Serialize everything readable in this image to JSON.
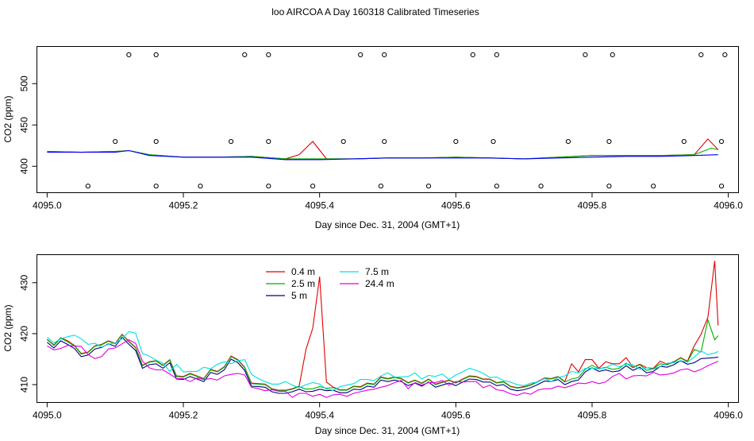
{
  "figure_title": "loo AIRCOA A  Day 160318  Calibrated Timeseries",
  "colors": {
    "0.4 m": "#e00000",
    "2.5 m": "#00b000",
    "5 m": "#000080",
    "7.5 m": "#00e0e0",
    "24.4 m": "#e000e0",
    "blue_line": "#0000ff",
    "markers": "#000000"
  },
  "chart_data": [
    {
      "type": "line",
      "title": "",
      "xlabel": "Day since Dec. 31, 2004 (GMT+1)",
      "ylabel": "CO2 (ppm)",
      "xlim": [
        4094.985,
        4096.015
      ],
      "ylim": [
        368,
        545
      ],
      "xticks": [
        4095.0,
        4095.2,
        4095.4,
        4095.6,
        4095.8,
        4096.0
      ],
      "xtick_labels": [
        "4095.0",
        "4095.2",
        "4095.4",
        "4095.6",
        "4095.8",
        "4096.0"
      ],
      "yticks": [
        400,
        450,
        500
      ],
      "ytick_labels": [
        "400",
        "450",
        "500"
      ],
      "grid": false,
      "series": [
        {
          "color": "#e00000",
          "x": [
            4095.0,
            4095.05,
            4095.1,
            4095.12,
            4095.15,
            4095.2,
            4095.25,
            4095.3,
            4095.35,
            4095.37,
            4095.39,
            4095.41,
            4095.45,
            4095.5,
            4095.55,
            4095.6,
            4095.65,
            4095.7,
            4095.75,
            4095.8,
            4095.85,
            4095.9,
            4095.95,
            4095.97,
            4095.985
          ],
          "values": [
            418,
            417,
            418,
            419,
            414,
            411,
            411,
            412,
            409,
            414,
            430,
            409,
            409,
            410,
            410,
            411,
            410,
            409,
            411,
            413,
            413,
            413,
            414,
            433,
            420
          ]
        },
        {
          "color": "#00b000",
          "x": [
            4095.0,
            4095.05,
            4095.1,
            4095.12,
            4095.15,
            4095.2,
            4095.25,
            4095.3,
            4095.35,
            4095.4,
            4095.45,
            4095.5,
            4095.55,
            4095.6,
            4095.65,
            4095.7,
            4095.75,
            4095.8,
            4095.85,
            4095.9,
            4095.95,
            4095.975,
            4095.985
          ],
          "values": [
            418,
            417,
            418,
            419,
            414,
            411,
            411,
            412,
            409,
            409,
            409,
            410,
            410,
            411,
            410,
            409,
            411,
            413,
            413,
            413,
            414,
            422,
            420
          ]
        },
        {
          "color": "#0000ff",
          "x": [
            4095.0,
            4095.05,
            4095.1,
            4095.12,
            4095.15,
            4095.2,
            4095.25,
            4095.3,
            4095.35,
            4095.4,
            4095.45,
            4095.5,
            4095.55,
            4095.6,
            4095.65,
            4095.7,
            4095.75,
            4095.8,
            4095.85,
            4095.9,
            4095.95,
            4095.985
          ],
          "values": [
            417,
            417,
            417,
            419,
            413,
            411,
            411,
            411,
            408,
            408,
            409,
            410,
            410,
            410,
            410,
            409,
            410,
            411,
            412,
            412,
            413,
            414
          ]
        }
      ],
      "markers": {
        "upper": {
          "x": [
            4095.12,
            4095.16,
            4095.29,
            4095.325,
            4095.46,
            4095.495,
            4095.625,
            4095.66,
            4095.79,
            4095.83,
            4095.96,
            4095.995
          ],
          "y": 535
        },
        "middle": {
          "x": [
            4095.1,
            4095.16,
            4095.27,
            4095.325,
            4095.435,
            4095.495,
            4095.6,
            4095.655,
            4095.765,
            4095.825,
            4095.935,
            4095.99
          ],
          "y": 430
        },
        "lower": {
          "x": [
            4095.06,
            4095.16,
            4095.225,
            4095.325,
            4095.39,
            4095.49,
            4095.56,
            4095.66,
            4095.725,
            4095.825,
            4095.89,
            4095.99
          ],
          "y": 376
        }
      }
    },
    {
      "type": "line",
      "title": "",
      "xlabel": "Day since Dec. 31, 2004 (GMT+1)",
      "ylabel": "CO2 (ppm)",
      "xlim": [
        4094.985,
        4096.015
      ],
      "ylim": [
        406.5,
        435.5
      ],
      "xticks": [
        4095.0,
        4095.2,
        4095.4,
        4095.6,
        4095.8,
        4096.0
      ],
      "xtick_labels": [
        "4095.0",
        "4095.2",
        "4095.4",
        "4095.6",
        "4095.8",
        "4096.0"
      ],
      "yticks": [
        410,
        420,
        430
      ],
      "ytick_labels": [
        "410",
        "420",
        "430"
      ],
      "grid": false,
      "legend": {
        "placement": "top-center",
        "entries": [
          {
            "label": "0.4 m",
            "color": "#e00000"
          },
          {
            "label": "2.5 m",
            "color": "#00b000"
          },
          {
            "label": "5 m",
            "color": "#000080"
          },
          {
            "label": "7.5 m",
            "color": "#00e0e0"
          },
          {
            "label": "24.4 m",
            "color": "#e000e0"
          }
        ]
      },
      "x": [
        4095.0,
        4095.01,
        4095.02,
        4095.03,
        4095.04,
        4095.05,
        4095.06,
        4095.07,
        4095.08,
        4095.09,
        4095.1,
        4095.11,
        4095.12,
        4095.13,
        4095.14,
        4095.15,
        4095.16,
        4095.17,
        4095.18,
        4095.19,
        4095.2,
        4095.21,
        4095.22,
        4095.23,
        4095.24,
        4095.25,
        4095.26,
        4095.27,
        4095.28,
        4095.29,
        4095.3,
        4095.31,
        4095.32,
        4095.33,
        4095.34,
        4095.35,
        4095.36,
        4095.37,
        4095.38,
        4095.39,
        4095.4,
        4095.41,
        4095.42,
        4095.43,
        4095.44,
        4095.45,
        4095.46,
        4095.47,
        4095.48,
        4095.49,
        4095.5,
        4095.51,
        4095.52,
        4095.53,
        4095.54,
        4095.55,
        4095.56,
        4095.57,
        4095.58,
        4095.59,
        4095.6,
        4095.61,
        4095.62,
        4095.63,
        4095.64,
        4095.65,
        4095.66,
        4095.67,
        4095.68,
        4095.69,
        4095.7,
        4095.71,
        4095.72,
        4095.73,
        4095.74,
        4095.75,
        4095.76,
        4095.77,
        4095.78,
        4095.79,
        4095.8,
        4095.81,
        4095.82,
        4095.83,
        4095.84,
        4095.85,
        4095.86,
        4095.87,
        4095.88,
        4095.89,
        4095.9,
        4095.91,
        4095.92,
        4095.93,
        4095.94,
        4095.95,
        4095.96,
        4095.97,
        4095.98,
        4095.985
      ],
      "series": [
        {
          "name": "0.4 m",
          "color": "#e00000",
          "values": [
            418.9,
            417.8,
            419.2,
            418.6,
            417.7,
            416.1,
            416.4,
            417.6,
            417.9,
            418.6,
            418.1,
            419.9,
            418.5,
            417.3,
            413.8,
            414.5,
            414.7,
            413.8,
            414.9,
            411.7,
            411.6,
            412.2,
            411.7,
            411.2,
            413.0,
            412.6,
            413.5,
            415.6,
            414.9,
            413.4,
            410.3,
            410.2,
            410.1,
            409.2,
            408.9,
            408.9,
            409.2,
            409.7,
            416.9,
            421.1,
            431.2,
            410.5,
            409.5,
            409.0,
            409.0,
            409.7,
            409.6,
            410.3,
            410.1,
            411.5,
            411.2,
            411.5,
            411.2,
            410.4,
            410.9,
            410.3,
            411.1,
            410.1,
            410.5,
            410.9,
            410.4,
            411.1,
            411.7,
            411.6,
            411.1,
            411.1,
            410.4,
            410.6,
            409.7,
            409.4,
            409.6,
            410.0,
            410.6,
            411.3,
            411.2,
            411.6,
            410.6,
            414.1,
            412.5,
            414.9,
            414.9,
            413.2,
            414.5,
            414.1,
            414.1,
            415.3,
            413.4,
            414.0,
            413.3,
            413.2,
            414.6,
            414.0,
            414.5,
            415.3,
            414.6,
            417.6,
            419.9,
            423.2,
            434.3,
            421.6
          ]
        },
        {
          "name": "2.5 m",
          "color": "#00b000",
          "values": [
            418.8,
            417.7,
            419.1,
            418.4,
            417.6,
            416.0,
            416.3,
            417.5,
            417.8,
            418.5,
            418.0,
            419.8,
            418.4,
            417.2,
            413.7,
            414.4,
            414.6,
            413.7,
            414.8,
            411.6,
            411.5,
            412.1,
            411.6,
            411.1,
            412.9,
            412.5,
            413.4,
            415.5,
            414.8,
            413.3,
            410.2,
            410.1,
            410.0,
            409.1,
            408.8,
            408.8,
            409.1,
            409.6,
            409.1,
            409.2,
            409.6,
            409.3,
            409.4,
            408.9,
            408.9,
            409.6,
            409.5,
            410.2,
            410.0,
            411.4,
            411.1,
            411.4,
            411.1,
            410.3,
            410.8,
            410.2,
            411.0,
            410.0,
            410.4,
            410.8,
            410.3,
            411.0,
            411.6,
            411.5,
            411.0,
            411.0,
            410.3,
            410.5,
            409.6,
            409.3,
            409.5,
            409.9,
            410.5,
            411.2,
            411.1,
            411.5,
            410.5,
            411.1,
            411.4,
            413.0,
            413.8,
            413.1,
            413.4,
            413.0,
            413.2,
            414.2,
            413.3,
            413.9,
            412.8,
            413.1,
            414.1,
            413.9,
            414.4,
            415.2,
            414.5,
            416.9,
            416.4,
            422.7,
            418.8,
            419.6
          ]
        },
        {
          "name": "5 m",
          "color": "#000080",
          "values": [
            418.3,
            417.2,
            418.6,
            417.9,
            417.1,
            415.5,
            415.8,
            417.0,
            417.3,
            418.0,
            417.5,
            419.3,
            417.9,
            416.7,
            413.2,
            413.9,
            414.1,
            413.2,
            414.3,
            411.1,
            411.0,
            411.6,
            411.1,
            410.6,
            412.4,
            412.0,
            412.9,
            415.0,
            414.3,
            412.8,
            409.7,
            409.6,
            409.5,
            408.6,
            408.3,
            408.3,
            408.6,
            409.1,
            408.6,
            408.7,
            409.1,
            408.8,
            408.9,
            408.4,
            408.4,
            409.1,
            409.0,
            409.7,
            409.5,
            410.9,
            410.6,
            410.9,
            410.6,
            409.8,
            410.3,
            409.7,
            410.5,
            409.5,
            409.9,
            410.3,
            409.8,
            410.5,
            411.1,
            411.0,
            410.5,
            410.5,
            409.8,
            410.0,
            409.1,
            408.8,
            409.0,
            409.4,
            410.0,
            410.7,
            410.6,
            411.0,
            410.0,
            410.6,
            410.9,
            412.5,
            413.3,
            412.6,
            412.9,
            412.5,
            412.7,
            413.7,
            412.8,
            413.4,
            412.3,
            412.6,
            413.6,
            413.4,
            413.9,
            414.7,
            414.0,
            414.3,
            415.1,
            415.2,
            415.3,
            415.4
          ]
        },
        {
          "name": "7.5 m",
          "color": "#00e0e0",
          "values": [
            419.3,
            418.2,
            419.0,
            419.4,
            419.7,
            419.0,
            417.9,
            418.1,
            417.4,
            417.9,
            418.2,
            419.0,
            420.4,
            420.1,
            416.1,
            415.6,
            414.8,
            414.2,
            412.6,
            414.0,
            412.5,
            412.6,
            412.6,
            413.4,
            413.1,
            414.0,
            414.5,
            414.1,
            414.7,
            414.9,
            412.0,
            411.2,
            410.6,
            410.1,
            410.1,
            410.6,
            409.9,
            409.4,
            410.0,
            410.4,
            410.1,
            409.1,
            408.9,
            409.6,
            409.9,
            410.2,
            411.0,
            411.0,
            410.8,
            411.7,
            412.3,
            411.5,
            411.5,
            411.6,
            412.3,
            411.1,
            411.8,
            411.6,
            412.1,
            411.0,
            411.9,
            412.5,
            413.2,
            412.8,
            412.2,
            411.4,
            411.5,
            410.8,
            410.5,
            410.0,
            409.8,
            410.3,
            410.5,
            411.2,
            410.6,
            411.4,
            411.7,
            412.6,
            412.3,
            413.2,
            413.2,
            413.1,
            413.3,
            414.0,
            413.5,
            414.0,
            413.9,
            413.0,
            413.3,
            413.0,
            413.6,
            414.2,
            414.3,
            414.7,
            414.4,
            415.4,
            416.6,
            415.9,
            416.2,
            416.5
          ]
        },
        {
          "name": "24.4 m",
          "color": "#e000e0",
          "values": [
            417.6,
            416.8,
            417.1,
            417.7,
            417.6,
            417.5,
            415.9,
            415.1,
            415.5,
            417.0,
            417.2,
            418.0,
            418.8,
            418.1,
            414.6,
            413.3,
            412.9,
            412.9,
            412.1,
            411.2,
            411.2,
            410.6,
            411.3,
            411.0,
            411.2,
            410.9,
            411.7,
            412.0,
            412.2,
            411.9,
            409.5,
            409.2,
            408.8,
            409.0,
            408.7,
            408.7,
            407.5,
            408.3,
            408.3,
            407.7,
            408.1,
            407.5,
            408.0,
            408.1,
            407.7,
            408.3,
            408.6,
            408.9,
            409.1,
            409.5,
            409.8,
            410.4,
            410.8,
            409.2,
            410.4,
            409.9,
            410.4,
            410.4,
            410.8,
            409.9,
            410.6,
            410.5,
            410.6,
            410.6,
            409.4,
            409.9,
            409.0,
            408.8,
            408.2,
            407.9,
            408.4,
            408.1,
            408.9,
            409.2,
            409.2,
            409.7,
            409.4,
            409.8,
            410.3,
            410.2,
            410.6,
            410.2,
            410.5,
            411.6,
            412.2,
            411.1,
            411.7,
            411.8,
            411.7,
            412.4,
            411.9,
            412.0,
            412.3,
            412.9,
            413.1,
            412.5,
            413.0,
            413.7,
            414.3,
            414.6
          ]
        }
      ]
    }
  ]
}
